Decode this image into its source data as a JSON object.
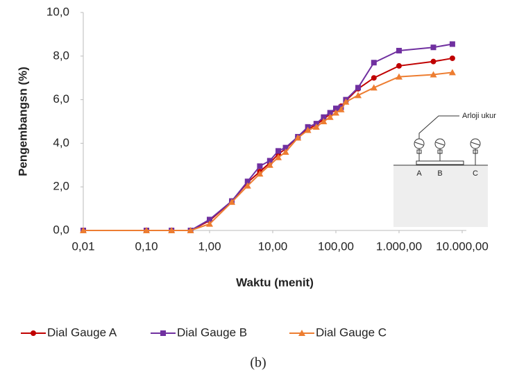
{
  "chart_data": {
    "type": "line",
    "y_label": "Pengembangsn (%)",
    "x_label": "Waktu (menit)",
    "caption": "(b)",
    "x_scale": "log",
    "xlim": [
      0.01,
      10000
    ],
    "xticks": [
      {
        "value": 0.01,
        "label": "0,01"
      },
      {
        "value": 0.1,
        "label": "0,10"
      },
      {
        "value": 1,
        "label": "1,00"
      },
      {
        "value": 10,
        "label": "10,00"
      },
      {
        "value": 100,
        "label": "100,00"
      },
      {
        "value": 1000,
        "label": "1.000,00"
      },
      {
        "value": 10000,
        "label": "10.000,00"
      }
    ],
    "ylim": [
      0,
      10
    ],
    "yticks": [
      {
        "value": 0,
        "label": "0,0"
      },
      {
        "value": 2,
        "label": "2,0"
      },
      {
        "value": 4,
        "label": "4,0"
      },
      {
        "value": 6,
        "label": "6,0"
      },
      {
        "value": 8,
        "label": "8,0"
      },
      {
        "value": 10,
        "label": "10,0"
      }
    ],
    "x": [
      0.01,
      0.1,
      0.25,
      0.5,
      1,
      2.25,
      4,
      6.25,
      9,
      12.25,
      16,
      25,
      36,
      49,
      64,
      81,
      100,
      121,
      144,
      225,
      400,
      1000,
      3500,
      7000
    ],
    "series": [
      {
        "name": "Dial Gauge A",
        "color": "#c00000",
        "marker": "circle",
        "values": [
          0,
          0,
          0,
          0,
          0.45,
          1.35,
          2.2,
          2.7,
          3.1,
          3.5,
          3.75,
          4.3,
          4.65,
          4.85,
          5.1,
          5.35,
          5.55,
          5.7,
          5.95,
          6.5,
          7.0,
          7.55,
          7.75,
          7.9
        ]
      },
      {
        "name": "Dial Gauge B",
        "color": "#7030a0",
        "marker": "square",
        "values": [
          0,
          0,
          0,
          0,
          0.5,
          1.35,
          2.25,
          2.95,
          3.2,
          3.65,
          3.8,
          4.3,
          4.75,
          4.9,
          5.2,
          5.4,
          5.6,
          5.65,
          6.0,
          6.55,
          7.7,
          8.25,
          8.4,
          8.55
        ]
      },
      {
        "name": "Dial Gauge C",
        "color": "#ed7d31",
        "marker": "triangle",
        "values": [
          0,
          0,
          0,
          0,
          0.3,
          1.3,
          2.05,
          2.6,
          3.0,
          3.35,
          3.6,
          4.25,
          4.6,
          4.75,
          5.0,
          5.2,
          5.4,
          5.55,
          5.9,
          6.2,
          6.55,
          7.05,
          7.15,
          7.25
        ]
      }
    ],
    "inset": {
      "label": "Arloji ukur",
      "points": [
        "A",
        "B",
        "C"
      ]
    }
  }
}
